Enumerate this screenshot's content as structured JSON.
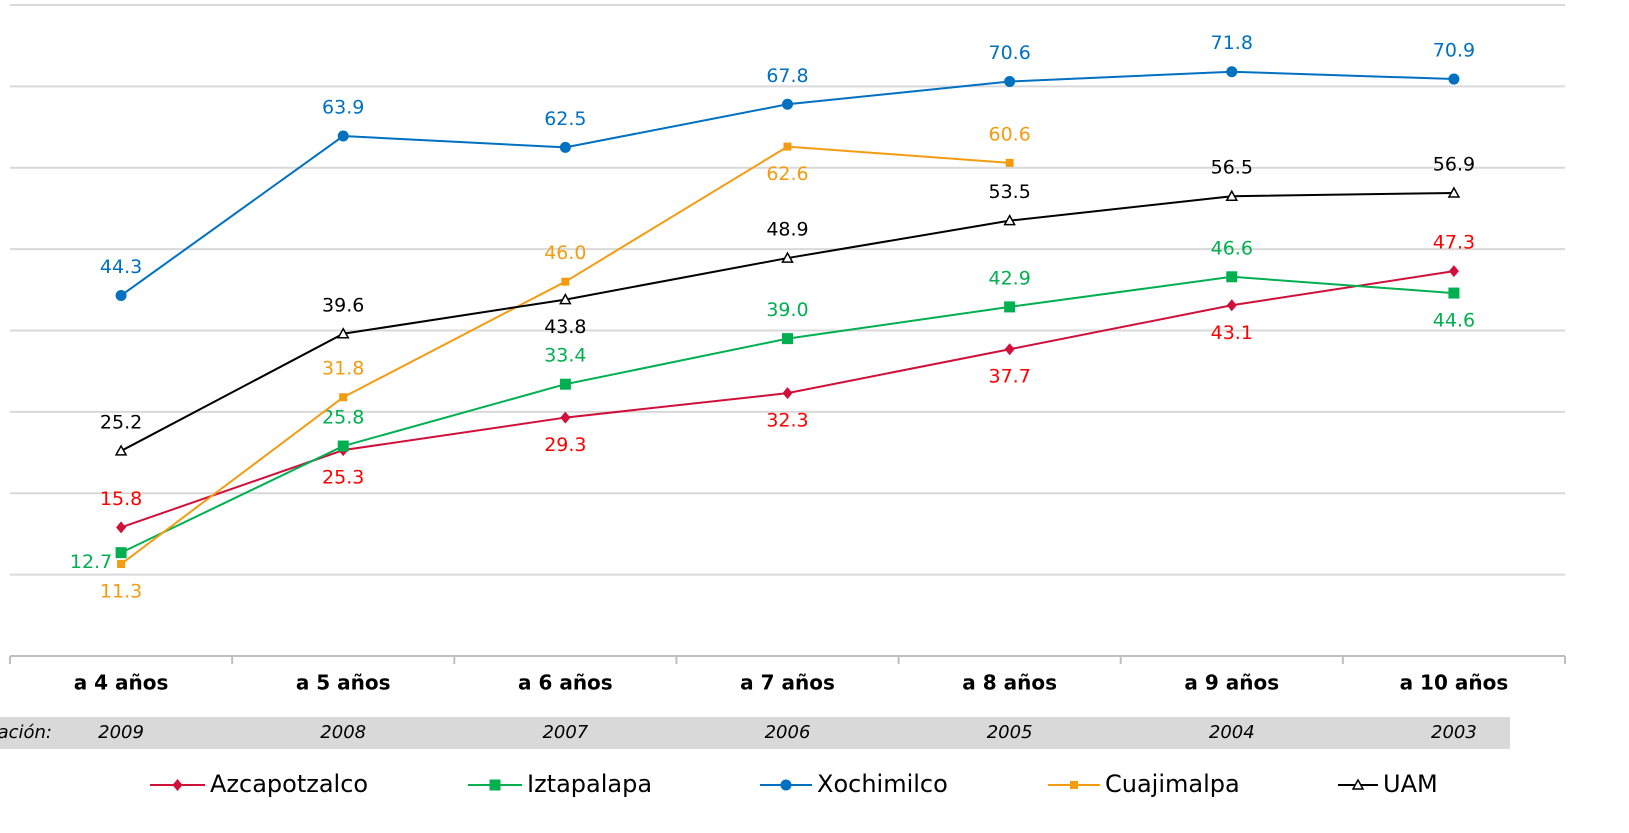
{
  "chart_data": {
    "type": "line",
    "categories": [
      "a 4 años",
      "a 5 años",
      "a 6 años",
      "a 7 años",
      "a 8 años",
      "a 9 años",
      "a 10 años"
    ],
    "row_label": "ación:",
    "generations": [
      "2009",
      "2008",
      "2007",
      "2006",
      "2005",
      "2004",
      "2003"
    ],
    "ylim": [
      0,
      80
    ],
    "yticks": [
      0,
      10,
      20,
      30,
      40,
      50,
      60,
      70,
      80
    ],
    "grid": true,
    "legend": "bottom",
    "series": [
      {
        "name": "Azcapotzalco",
        "color": "#d0103a",
        "label_color": "#ff0000",
        "marker": "diamond",
        "values": [
          15.8,
          25.3,
          29.3,
          32.3,
          37.7,
          43.1,
          47.3
        ]
      },
      {
        "name": "Iztapalapa",
        "color": "#00b050",
        "label_color": "#00b050",
        "marker": "square",
        "values": [
          12.7,
          25.8,
          33.4,
          39.0,
          42.9,
          46.6,
          44.6
        ],
        "value_labels": [
          "12.7",
          "25.8",
          "33.4",
          "39.0",
          "42.9",
          "46.6",
          "44.6"
        ]
      },
      {
        "name": "Xochimilco",
        "color": "#0070c0",
        "label_color": "#0070c0",
        "marker": "circle",
        "values": [
          44.3,
          63.9,
          62.5,
          67.8,
          70.6,
          71.8,
          70.9
        ]
      },
      {
        "name": "Cuajimalpa",
        "color": "#f39c12",
        "label_color": "#f39c12",
        "marker": "smallsquare",
        "values": [
          11.3,
          31.8,
          46.0,
          62.6,
          60.6,
          null,
          null
        ],
        "value_labels": [
          "11.3",
          "31.8",
          "46.0",
          "62.6",
          "60.6",
          null,
          null
        ]
      },
      {
        "name": "UAM",
        "color": "#000000",
        "label_color": "#000000",
        "marker": "triangle",
        "values": [
          25.2,
          39.6,
          43.8,
          48.9,
          53.5,
          56.5,
          56.9
        ]
      }
    ]
  }
}
